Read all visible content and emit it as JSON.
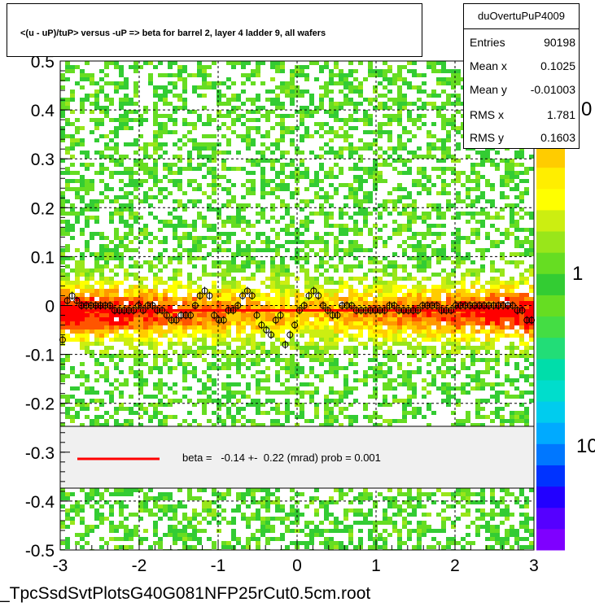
{
  "title": "<(u - uP)/tuP> versus  -uP => beta for barrel 2, layer 4 ladder 9, all wafers",
  "footer": "_TpcSsdSvtPlotsG40G081NFP25rCut0.5cm.root",
  "stats": {
    "name": "duOvertuPuP4009",
    "rows": [
      {
        "label": "Entries",
        "value": "90198"
      },
      {
        "label": "Mean x",
        "value": "0.1025"
      },
      {
        "label": "Mean y",
        "value": "-0.01003"
      },
      {
        "label": "RMS x",
        "value": "1.781"
      },
      {
        "label": "RMS y",
        "value": "0.1603"
      }
    ]
  },
  "fit_label": "beta =   -0.14 +-  0.22 (mrad) prob = 0.001",
  "colors": {
    "fit_line": "#ff0000",
    "legend_bg": "#f0f0f0"
  },
  "chart_data": {
    "type": "heatmap",
    "xlim": [
      -3,
      3
    ],
    "ylim": [
      -0.5,
      0.5
    ],
    "x_ticks": [
      "-3",
      "-2",
      "-1",
      "0",
      "1",
      "2",
      "3"
    ],
    "y_ticks": [
      "-0.5",
      "-0.4",
      "-0.3",
      "-0.2",
      "-0.1",
      "0",
      "0.1",
      "0.2",
      "0.3",
      "0.4",
      "0.5"
    ],
    "z_ticks": [
      "1",
      "10"
    ],
    "z_tick_partial": "0",
    "grid": true,
    "z_scale": "log",
    "fit_line": {
      "x": [
        -3,
        3
      ],
      "y": [
        -0.01,
        -0.01
      ]
    },
    "profile_points": {
      "x": [
        -2.97,
        -2.91,
        -2.85,
        -2.79,
        -2.73,
        -2.67,
        -2.61,
        -2.55,
        -2.49,
        -2.43,
        -2.37,
        -2.31,
        -2.25,
        -2.19,
        -2.13,
        -2.07,
        -2.01,
        -1.95,
        -1.89,
        -1.83,
        -1.77,
        -1.71,
        -1.65,
        -1.59,
        -1.53,
        -1.47,
        -1.41,
        -1.35,
        -1.29,
        -1.23,
        -1.17,
        -1.11,
        -1.05,
        -0.99,
        -0.93,
        -0.87,
        -0.81,
        -0.75,
        -0.69,
        -0.63,
        -0.57,
        -0.51,
        -0.45,
        -0.39,
        -0.33,
        -0.27,
        -0.21,
        -0.15,
        -0.09,
        -0.03,
        0.03,
        0.09,
        0.15,
        0.21,
        0.27,
        0.33,
        0.39,
        0.45,
        0.51,
        0.57,
        0.63,
        0.69,
        0.75,
        0.81,
        0.87,
        0.93,
        0.99,
        1.05,
        1.11,
        1.17,
        1.23,
        1.29,
        1.35,
        1.41,
        1.47,
        1.53,
        1.59,
        1.65,
        1.71,
        1.77,
        1.83,
        1.89,
        1.95,
        2.01,
        2.07,
        2.13,
        2.19,
        2.25,
        2.31,
        2.37,
        2.43,
        2.49,
        2.55,
        2.61,
        2.67,
        2.73,
        2.79,
        2.85,
        2.91,
        2.97
      ],
      "y": [
        -0.07,
        0.01,
        0.02,
        0.01,
        0.0,
        0.0,
        0.0,
        0.0,
        0.0,
        0.0,
        0.0,
        -0.01,
        -0.01,
        -0.01,
        -0.01,
        -0.01,
        0.0,
        -0.01,
        0.0,
        0.0,
        -0.01,
        -0.01,
        -0.02,
        -0.03,
        -0.03,
        -0.02,
        -0.02,
        -0.02,
        0.0,
        0.02,
        0.03,
        0.02,
        -0.02,
        -0.03,
        -0.03,
        -0.01,
        -0.01,
        0.0,
        0.02,
        0.03,
        0.02,
        -0.02,
        -0.04,
        -0.05,
        -0.06,
        -0.03,
        -0.02,
        -0.08,
        -0.06,
        -0.04,
        -0.01,
        0.0,
        0.02,
        0.03,
        0.02,
        0.0,
        -0.01,
        -0.02,
        -0.02,
        0.0,
        0.0,
        0.0,
        -0.01,
        -0.01,
        -0.01,
        -0.01,
        -0.01,
        -0.01,
        -0.01,
        0.0,
        0.0,
        -0.01,
        -0.01,
        -0.01,
        -0.01,
        -0.01,
        0.0,
        0.0,
        0.0,
        0.0,
        -0.01,
        -0.01,
        -0.01,
        0.0,
        0.0,
        0.0,
        0.0,
        0.0,
        0.0,
        0.0,
        0.0,
        0.0,
        0.0,
        0.0,
        0.0,
        0.0,
        -0.01,
        -0.01,
        -0.03,
        -0.03
      ]
    }
  }
}
